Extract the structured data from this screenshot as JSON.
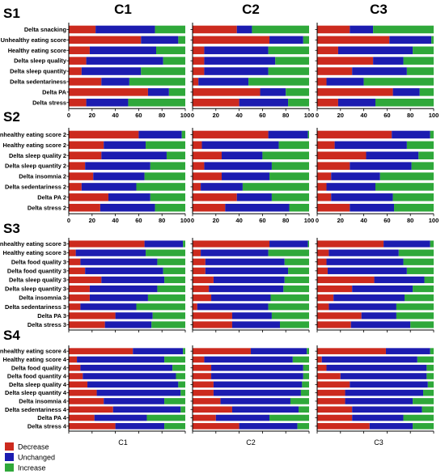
{
  "colors": {
    "decrease": "#cc2a1e",
    "unchanged": "#1c1cb0",
    "increase": "#2fa83a",
    "dark_stripe": "#6b4a1c"
  },
  "column_titles": [
    "C1",
    "C2",
    "C3"
  ],
  "legend": {
    "placement": "bottom-left",
    "items": [
      "Decrease",
      "Unchanged",
      "Increase"
    ]
  },
  "chart_data": {
    "type": "bar",
    "orientation": "horizontal-stacked-100",
    "xlim": [
      0,
      100
    ],
    "x_ticks": [
      "0",
      "20",
      "40",
      "60",
      "80",
      "100"
    ],
    "x_ticks_shown_on": [
      "S1",
      "S2"
    ],
    "bottom_labels": [
      "C1",
      "C2",
      "C3"
    ],
    "grid": false,
    "stack_order": [
      "Decrease",
      "Unchanged",
      "Increase"
    ],
    "panels": [
      {
        "section": "S1",
        "categories": [
          "Delta snacking",
          "Unhealthy eating score",
          "Healthy eating score",
          "Delta sleep quality",
          "Delta sleep quantity",
          "Delta sedentariness",
          "Delta PA",
          "Delta stress"
        ],
        "columns": [
          {
            "name": "C1",
            "decrease": [
              23,
              62,
              18,
              15,
              11,
              28,
              68,
              15
            ],
            "unchanged": [
              51,
              32,
              57,
              66,
              51,
              24,
              18,
              36
            ]
          },
          {
            "name": "C2",
            "decrease": [
              38,
              66,
              10,
              10,
              10,
              5,
              58,
              40
            ],
            "unchanged": [
              13,
              29,
              55,
              61,
              55,
              43,
              22,
              42
            ]
          },
          {
            "name": "C3",
            "decrease": [
              28,
              62,
              18,
              48,
              30,
              8,
              65,
              18
            ],
            "unchanged": [
              20,
              36,
              64,
              26,
              47,
              32,
              23,
              32
            ]
          }
        ]
      },
      {
        "section": "S2",
        "categories": [
          "Unhealthy eating score 2",
          "Healthy eating score 2",
          "Delta sleep quality 2",
          "Delta sleep quantity 2",
          "Delta insomnia 2",
          "Delta sedentariness 2",
          "Delta PA 2",
          "Delta stress 2"
        ],
        "columns": [
          {
            "name": "C1",
            "decrease": [
              60,
              30,
              28,
              14,
              21,
              11,
              34,
              27
            ],
            "unchanged": [
              37,
              36,
              56,
              56,
              44,
              47,
              36,
              47
            ]
          },
          {
            "name": "C2",
            "decrease": [
              65,
              8,
              25,
              10,
              25,
              7,
              38,
              28
            ],
            "unchanged": [
              34,
              66,
              35,
              58,
              41,
              36,
              30,
              55
            ]
          },
          {
            "name": "C3",
            "decrease": [
              64,
              15,
              42,
              28,
              12,
              8,
              12,
              28
            ],
            "unchanged": [
              33,
              62,
              45,
              53,
              42,
              42,
              53,
              38
            ]
          }
        ]
      },
      {
        "section": "S3",
        "categories": [
          "Unhealthy eating score 3",
          "Healthy eating score 3",
          "Delta food quality 3",
          "Delta food quantity 3",
          "Delta sleep quality 3",
          "Delta sleep quantity 3",
          "Delta insomnia 3",
          "Delta sedentariness 3",
          "Delta PA 3",
          "Delta stress 3"
        ],
        "columns": [
          {
            "name": "C1",
            "decrease": [
              65,
              6,
              10,
              14,
              28,
              18,
              18,
              10,
              40,
              31
            ],
            "unchanged": [
              33,
              60,
              66,
              67,
              54,
              58,
              50,
              48,
              32,
              40
            ]
          },
          {
            "name": "C2",
            "decrease": [
              66,
              7,
              11,
              11,
              18,
              14,
              16,
              4,
              34,
              34
            ],
            "unchanged": [
              33,
              58,
              68,
              71,
              61,
              64,
              51,
              61,
              34,
              41
            ]
          },
          {
            "name": "C3",
            "decrease": [
              57,
              10,
              8,
              9,
              49,
              30,
              14,
              10,
              38,
              29
            ],
            "unchanged": [
              40,
              60,
              66,
              68,
              43,
              52,
              61,
              58,
              30,
              51
            ]
          }
        ]
      },
      {
        "section": "S4",
        "categories": [
          "Unhealthy eating score 4",
          "Healthy eating score 4",
          "Delta food quality 4",
          "Delta food quantity 4",
          "Delta sleep quality 4",
          "Delta sleep quantity 4",
          "Delta insomnia 4",
          "Delta sedentariness 4",
          "Delta PA 4",
          "Delta stress 4"
        ],
        "columns": [
          {
            "name": "C1",
            "decrease": [
              55,
              7,
              10,
              12,
              16,
              24,
              30,
              38,
              22,
              40
            ],
            "unchanged": [
              43,
              75,
              79,
              80,
              78,
              72,
              52,
              58,
              45,
              42
            ]
          },
          {
            "name": "C2",
            "decrease": [
              50,
              10,
              16,
              16,
              18,
              18,
              24,
              34,
              20,
              40
            ],
            "unchanged": [
              48,
              76,
              79,
              79,
              76,
              75,
              60,
              57,
              46,
              50
            ]
          },
          {
            "name": "C3",
            "decrease": [
              59,
              4,
              8,
              20,
              28,
              24,
              24,
              30,
              30,
              45
            ],
            "unchanged": [
              38,
              82,
              86,
              74,
              67,
              67,
              58,
              60,
              44,
              37
            ]
          }
        ]
      }
    ]
  }
}
